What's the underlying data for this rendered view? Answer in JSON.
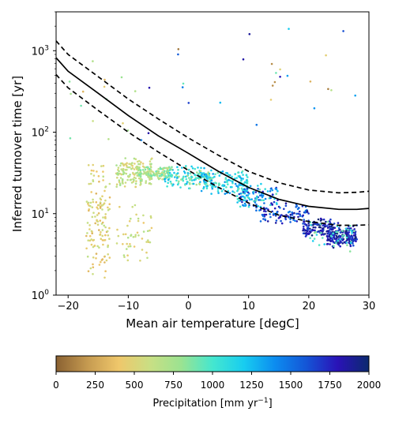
{
  "chart_data": {
    "type": "scatter",
    "title": "",
    "xlabel": "Mean air temperature [degC]",
    "ylabel": "Inferred turnover time [yr]",
    "xlim": [
      -22,
      30
    ],
    "ylim": [
      1,
      3000
    ],
    "yscale": "log",
    "grid": false,
    "x_ticks": [
      -20,
      -10,
      0,
      10,
      20,
      30
    ],
    "x_tick_labels": [
      "−20",
      "−10",
      "0",
      "10",
      "20",
      "30"
    ],
    "y_ticks": [
      1,
      10,
      100,
      1000
    ],
    "y_tick_labels": [
      "10",
      "10",
      "10",
      "10"
    ],
    "y_tick_exponents": [
      "0",
      "1",
      "2",
      "3"
    ],
    "curves": [
      {
        "style": "solid",
        "x": [
          -22,
          -20,
          -15,
          -10,
          -5,
          0,
          5,
          10,
          15,
          20,
          25,
          28,
          30
        ],
        "y": [
          820,
          560,
          300,
          160,
          90,
          55,
          33,
          21,
          15,
          12.3,
          11.3,
          11.3,
          11.6
        ]
      },
      {
        "style": "dashed",
        "x": [
          -22,
          -20,
          -15,
          -10,
          -5,
          0,
          5,
          10,
          15,
          20,
          25,
          28,
          30
        ],
        "y": [
          1320,
          900,
          480,
          255,
          145,
          85,
          52,
          33,
          24,
          19.5,
          18,
          18.3,
          18.8
        ]
      },
      {
        "style": "dashed",
        "x": [
          -22,
          -20,
          -15,
          -10,
          -5,
          0,
          5,
          10,
          15,
          20,
          25,
          28,
          30
        ],
        "y": [
          510,
          350,
          185,
          100,
          57,
          34,
          21,
          13.5,
          9.6,
          8.0,
          7.2,
          7.2,
          7.3
        ]
      }
    ],
    "clusters": [
      {
        "xr": [
          -17,
          -13
        ],
        "yr": [
          1.2,
          60
        ],
        "c": [
          300,
          650
        ],
        "n": 140
      },
      {
        "xr": [
          -12,
          -6
        ],
        "yr": [
          20,
          50
        ],
        "c": [
          450,
          800
        ],
        "n": 150
      },
      {
        "xr": [
          -9,
          -3
        ],
        "yr": [
          25,
          40
        ],
        "c": [
          550,
          950
        ],
        "n": 110
      },
      {
        "xr": [
          -4,
          4
        ],
        "yr": [
          20,
          40
        ],
        "c": [
          700,
          1300
        ],
        "n": 140
      },
      {
        "xr": [
          2,
          10
        ],
        "yr": [
          15,
          35
        ],
        "c": [
          900,
          1400
        ],
        "n": 150
      },
      {
        "xr": [
          8,
          15
        ],
        "yr": [
          10,
          25
        ],
        "c": [
          900,
          1800
        ],
        "n": 110
      },
      {
        "xr": [
          12,
          20
        ],
        "yr": [
          7,
          14
        ],
        "c": [
          1400,
          1900
        ],
        "n": 100
      },
      {
        "xr": [
          19,
          24
        ],
        "yr": [
          5,
          9
        ],
        "c": [
          1600,
          2000
        ],
        "n": 110
      },
      {
        "xr": [
          23,
          28
        ],
        "yr": [
          3.5,
          8
        ],
        "c": [
          1600,
          2000
        ],
        "n": 180
      },
      {
        "xr": [
          -12,
          -6
        ],
        "yr": [
          2,
          15
        ],
        "c": [
          400,
          700
        ],
        "n": 50
      },
      {
        "xr": [
          20,
          28
        ],
        "yr": [
          3,
          10
        ],
        "c": [
          800,
          1200
        ],
        "n": 40
      },
      {
        "xr": [
          -20,
          -8
        ],
        "yr": [
          60,
          1500
        ],
        "c": [
          300,
          900
        ],
        "n": 15
      },
      {
        "xr": [
          -8,
          30
        ],
        "yr": [
          60,
          2500
        ],
        "c": [
          0,
          2000
        ],
        "n": 28
      }
    ],
    "colorbar": {
      "label_main": "Precipitation [mm yr",
      "label_sup": "−1",
      "label_end": "]",
      "range": [
        0,
        2000
      ],
      "ticks": [
        0,
        250,
        500,
        750,
        1000,
        1250,
        1500,
        1750,
        2000
      ],
      "tick_labels": [
        "0",
        "250",
        "500",
        "750",
        "1000",
        "1250",
        "1500",
        "1750",
        "2000"
      ],
      "colormap": [
        "#8a6132",
        "#c59a50",
        "#efc76b",
        "#c9df84",
        "#9be391",
        "#45e7cf",
        "#18cdf0",
        "#0c8cf0",
        "#1455d6",
        "#2a12b7",
        "#0b2a6e"
      ]
    }
  }
}
